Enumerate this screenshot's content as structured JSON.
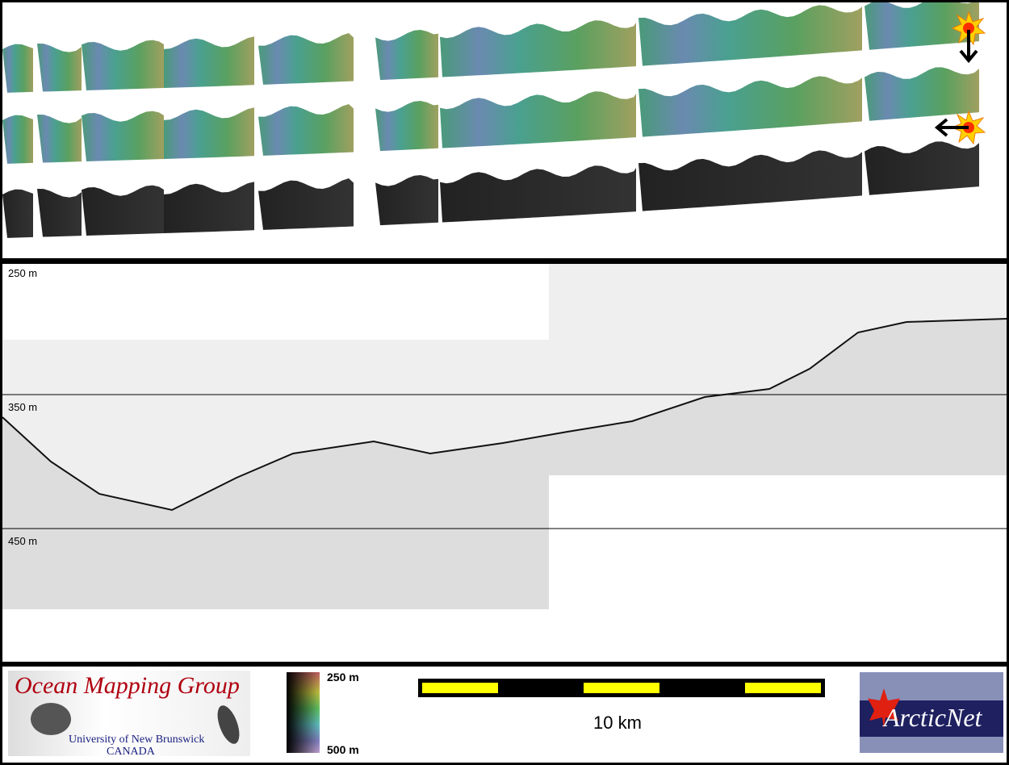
{
  "profile": {
    "depth_labels": [
      "250 m",
      "350 m",
      "450 m"
    ]
  },
  "legend": {
    "colorbar_top": "250 m",
    "colorbar_bottom": "500 m",
    "colors": [
      "#c06060",
      "#c0c040",
      "#60c060",
      "#60c0c0",
      "#8080c0",
      "#c0a0d0"
    ]
  },
  "scalebar": {
    "label": "10 km",
    "colors": [
      "#000000",
      "#ffff00"
    ]
  },
  "logos": {
    "omg_title": "Ocean Mapping Group",
    "omg_sub1": "University of New Brunswick",
    "omg_sub2": "CANADA",
    "arcticnet": "ArcticNet"
  },
  "icons": [
    "sun-illumination-icon",
    "arrow-down-icon",
    "arrow-left-icon"
  ]
}
